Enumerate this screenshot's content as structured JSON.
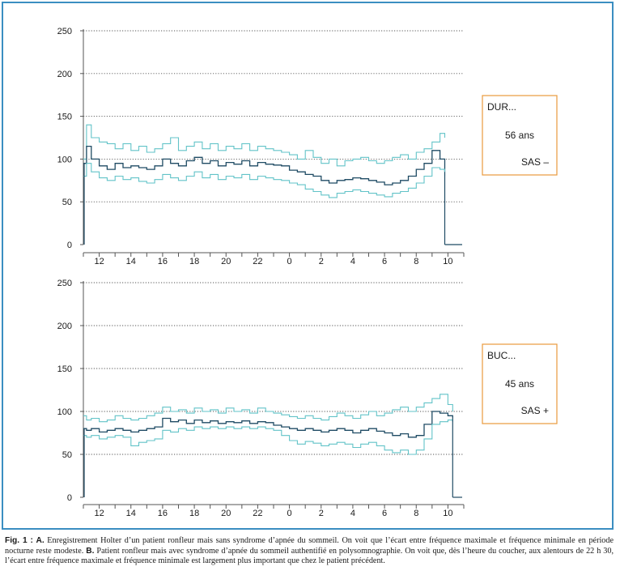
{
  "colors": {
    "frame": "#3b8ec1",
    "min_max_lines": "#62c3c8",
    "mean_line": "#1f4b64",
    "info_box_border": "#e89a3c",
    "grid": "#555555"
  },
  "caption": {
    "fig_label": "Fig. 1 : ",
    "a_label": "A.",
    "a_text": " Enregistrement Holter d’un patient ronfleur mais sans syndrome d’apnée du sommeil. On voit que l’écart entre fréquence maximale et fréquence minimale en période nocturne reste modeste. ",
    "b_label": "B.",
    "b_text": " Patient ronfleur mais avec syndrome d’apnée du sommeil authentifié en polysomnographie. On voit que, dès l’heure du coucher, aux alentours de 22 h 30, l’écart entre fréquence maximale et fréquence minimale est largement plus important que chez le patient précédent."
  },
  "chart_data": [
    {
      "type": "line",
      "title": "",
      "xlabel": "",
      "ylabel": "",
      "y_ticks": [
        0,
        50,
        100,
        150,
        200,
        250
      ],
      "ylim": [
        0,
        250
      ],
      "x_tick_labels": [
        "12",
        "14",
        "16",
        "18",
        "20",
        "22",
        "0",
        "2",
        "4",
        "6",
        "8",
        "10"
      ],
      "x_start_hour": 11,
      "x_end_hour": 11,
      "grid": "horizontal dotted",
      "info_box": {
        "name": "DUR...",
        "age": "56 ans",
        "status": "SAS –"
      },
      "series": [
        {
          "role": "max",
          "x": [
            11.0,
            11.2,
            11.5,
            12.0,
            12.5,
            13.0,
            13.5,
            14.0,
            14.5,
            15.0,
            15.5,
            16.0,
            16.5,
            17.0,
            17.5,
            18.0,
            18.5,
            19.0,
            19.5,
            20.0,
            20.5,
            21.0,
            21.5,
            22.0,
            22.5,
            23.0,
            23.5,
            0.0,
            0.5,
            1.0,
            1.5,
            2.0,
            2.5,
            3.0,
            3.5,
            4.0,
            4.5,
            5.0,
            5.5,
            6.0,
            6.5,
            7.0,
            7.5,
            8.0,
            8.5,
            9.0,
            9.5,
            9.8
          ],
          "y": [
            100,
            140,
            125,
            120,
            118,
            112,
            118,
            110,
            115,
            108,
            112,
            118,
            125,
            110,
            115,
            120,
            112,
            118,
            110,
            115,
            112,
            118,
            110,
            115,
            112,
            110,
            108,
            105,
            100,
            110,
            102,
            95,
            100,
            92,
            98,
            100,
            102,
            98,
            95,
            98,
            102,
            105,
            100,
            108,
            112,
            120,
            130,
            125
          ]
        },
        {
          "role": "mean",
          "x": [
            11.0,
            11.2,
            11.5,
            12.0,
            12.5,
            13.0,
            13.5,
            14.0,
            14.5,
            15.0,
            15.5,
            16.0,
            16.5,
            17.0,
            17.5,
            18.0,
            18.5,
            19.0,
            19.5,
            20.0,
            20.5,
            21.0,
            21.5,
            22.0,
            22.5,
            23.0,
            23.5,
            0.0,
            0.5,
            1.0,
            1.5,
            2.0,
            2.5,
            3.0,
            3.5,
            4.0,
            4.5,
            5.0,
            5.5,
            6.0,
            6.5,
            7.0,
            7.5,
            8.0,
            8.5,
            9.0,
            9.5,
            9.8
          ],
          "y": [
            95,
            115,
            100,
            92,
            88,
            95,
            90,
            92,
            90,
            88,
            92,
            100,
            95,
            92,
            98,
            102,
            95,
            98,
            92,
            96,
            94,
            98,
            92,
            96,
            94,
            93,
            92,
            87,
            85,
            82,
            80,
            75,
            72,
            75,
            76,
            78,
            77,
            75,
            73,
            70,
            72,
            75,
            80,
            88,
            95,
            110,
            100,
            85
          ]
        },
        {
          "role": "min",
          "x": [
            11.0,
            11.2,
            11.5,
            12.0,
            12.5,
            13.0,
            13.5,
            14.0,
            14.5,
            15.0,
            15.5,
            16.0,
            16.5,
            17.0,
            17.5,
            18.0,
            18.5,
            19.0,
            19.5,
            20.0,
            20.5,
            21.0,
            21.5,
            22.0,
            22.5,
            23.0,
            23.5,
            0.0,
            0.5,
            1.0,
            1.5,
            2.0,
            2.5,
            3.0,
            3.5,
            4.0,
            4.5,
            5.0,
            5.5,
            6.0,
            6.5,
            7.0,
            7.5,
            8.0,
            8.5,
            9.0,
            9.5,
            9.8
          ],
          "y": [
            80,
            95,
            85,
            78,
            75,
            80,
            76,
            78,
            74,
            72,
            76,
            82,
            78,
            75,
            80,
            85,
            78,
            82,
            76,
            80,
            78,
            82,
            76,
            80,
            78,
            76,
            75,
            72,
            70,
            65,
            62,
            58,
            55,
            60,
            62,
            64,
            62,
            60,
            58,
            56,
            60,
            62,
            66,
            72,
            80,
            90,
            88,
            80
          ]
        }
      ]
    },
    {
      "type": "line",
      "title": "",
      "xlabel": "",
      "ylabel": "",
      "y_ticks": [
        0,
        50,
        100,
        150,
        200,
        250
      ],
      "ylim": [
        0,
        250
      ],
      "x_tick_labels": [
        "12",
        "14",
        "16",
        "18",
        "20",
        "22",
        "0",
        "2",
        "4",
        "6",
        "8",
        "10"
      ],
      "x_start_hour": 11,
      "x_end_hour": 11,
      "grid": "horizontal dotted",
      "info_box": {
        "name": "BUC...",
        "age": "45 ans",
        "status": "SAS +"
      },
      "series": [
        {
          "role": "max",
          "x": [
            11.0,
            11.2,
            11.5,
            12.0,
            12.5,
            13.0,
            13.5,
            14.0,
            14.5,
            15.0,
            15.5,
            16.0,
            16.5,
            17.0,
            17.5,
            18.0,
            18.5,
            19.0,
            19.5,
            20.0,
            20.5,
            21.0,
            21.5,
            22.0,
            22.5,
            23.0,
            23.5,
            0.0,
            0.5,
            1.0,
            1.5,
            2.0,
            2.5,
            3.0,
            3.5,
            4.0,
            4.5,
            5.0,
            5.5,
            6.0,
            6.5,
            7.0,
            7.5,
            8.0,
            8.5,
            9.0,
            9.5,
            10.0,
            10.3
          ],
          "y": [
            95,
            90,
            92,
            88,
            90,
            95,
            92,
            90,
            92,
            95,
            98,
            105,
            100,
            102,
            98,
            104,
            100,
            102,
            98,
            104,
            100,
            102,
            98,
            104,
            100,
            98,
            96,
            94,
            92,
            95,
            92,
            90,
            94,
            98,
            95,
            92,
            96,
            100,
            95,
            98,
            102,
            105,
            100,
            105,
            110,
            115,
            120,
            108,
            100
          ]
        },
        {
          "role": "mean",
          "x": [
            11.0,
            11.2,
            11.5,
            12.0,
            12.5,
            13.0,
            13.5,
            14.0,
            14.5,
            15.0,
            15.5,
            16.0,
            16.5,
            17.0,
            17.5,
            18.0,
            18.5,
            19.0,
            19.5,
            20.0,
            20.5,
            21.0,
            21.5,
            22.0,
            22.5,
            23.0,
            23.5,
            0.0,
            0.5,
            1.0,
            1.5,
            2.0,
            2.5,
            3.0,
            3.5,
            4.0,
            4.5,
            5.0,
            5.5,
            6.0,
            6.5,
            7.0,
            7.5,
            8.0,
            8.5,
            9.0,
            9.5,
            10.0,
            10.3
          ],
          "y": [
            80,
            78,
            80,
            76,
            78,
            80,
            78,
            76,
            78,
            80,
            82,
            92,
            88,
            90,
            86,
            90,
            87,
            89,
            86,
            88,
            87,
            89,
            86,
            88,
            87,
            84,
            82,
            80,
            78,
            80,
            78,
            76,
            78,
            80,
            78,
            75,
            78,
            80,
            77,
            75,
            72,
            74,
            70,
            72,
            85,
            100,
            98,
            95,
            92
          ]
        },
        {
          "role": "min",
          "x": [
            11.0,
            11.2,
            11.5,
            12.0,
            12.5,
            13.0,
            13.5,
            14.0,
            14.5,
            15.0,
            15.5,
            16.0,
            16.5,
            17.0,
            17.5,
            18.0,
            18.5,
            19.0,
            19.5,
            20.0,
            20.5,
            21.0,
            21.5,
            22.0,
            22.5,
            23.0,
            23.5,
            0.0,
            0.5,
            1.0,
            1.5,
            2.0,
            2.5,
            3.0,
            3.5,
            4.0,
            4.5,
            5.0,
            5.5,
            6.0,
            6.5,
            7.0,
            7.5,
            8.0,
            8.5,
            9.0,
            9.5,
            10.0,
            10.3
          ],
          "y": [
            72,
            70,
            72,
            68,
            70,
            72,
            70,
            60,
            64,
            66,
            68,
            78,
            76,
            80,
            78,
            82,
            80,
            82,
            80,
            82,
            80,
            82,
            80,
            82,
            80,
            78,
            72,
            66,
            62,
            65,
            63,
            60,
            62,
            64,
            62,
            58,
            62,
            64,
            60,
            55,
            52,
            55,
            50,
            55,
            68,
            85,
            88,
            90,
            88
          ]
        }
      ]
    }
  ]
}
